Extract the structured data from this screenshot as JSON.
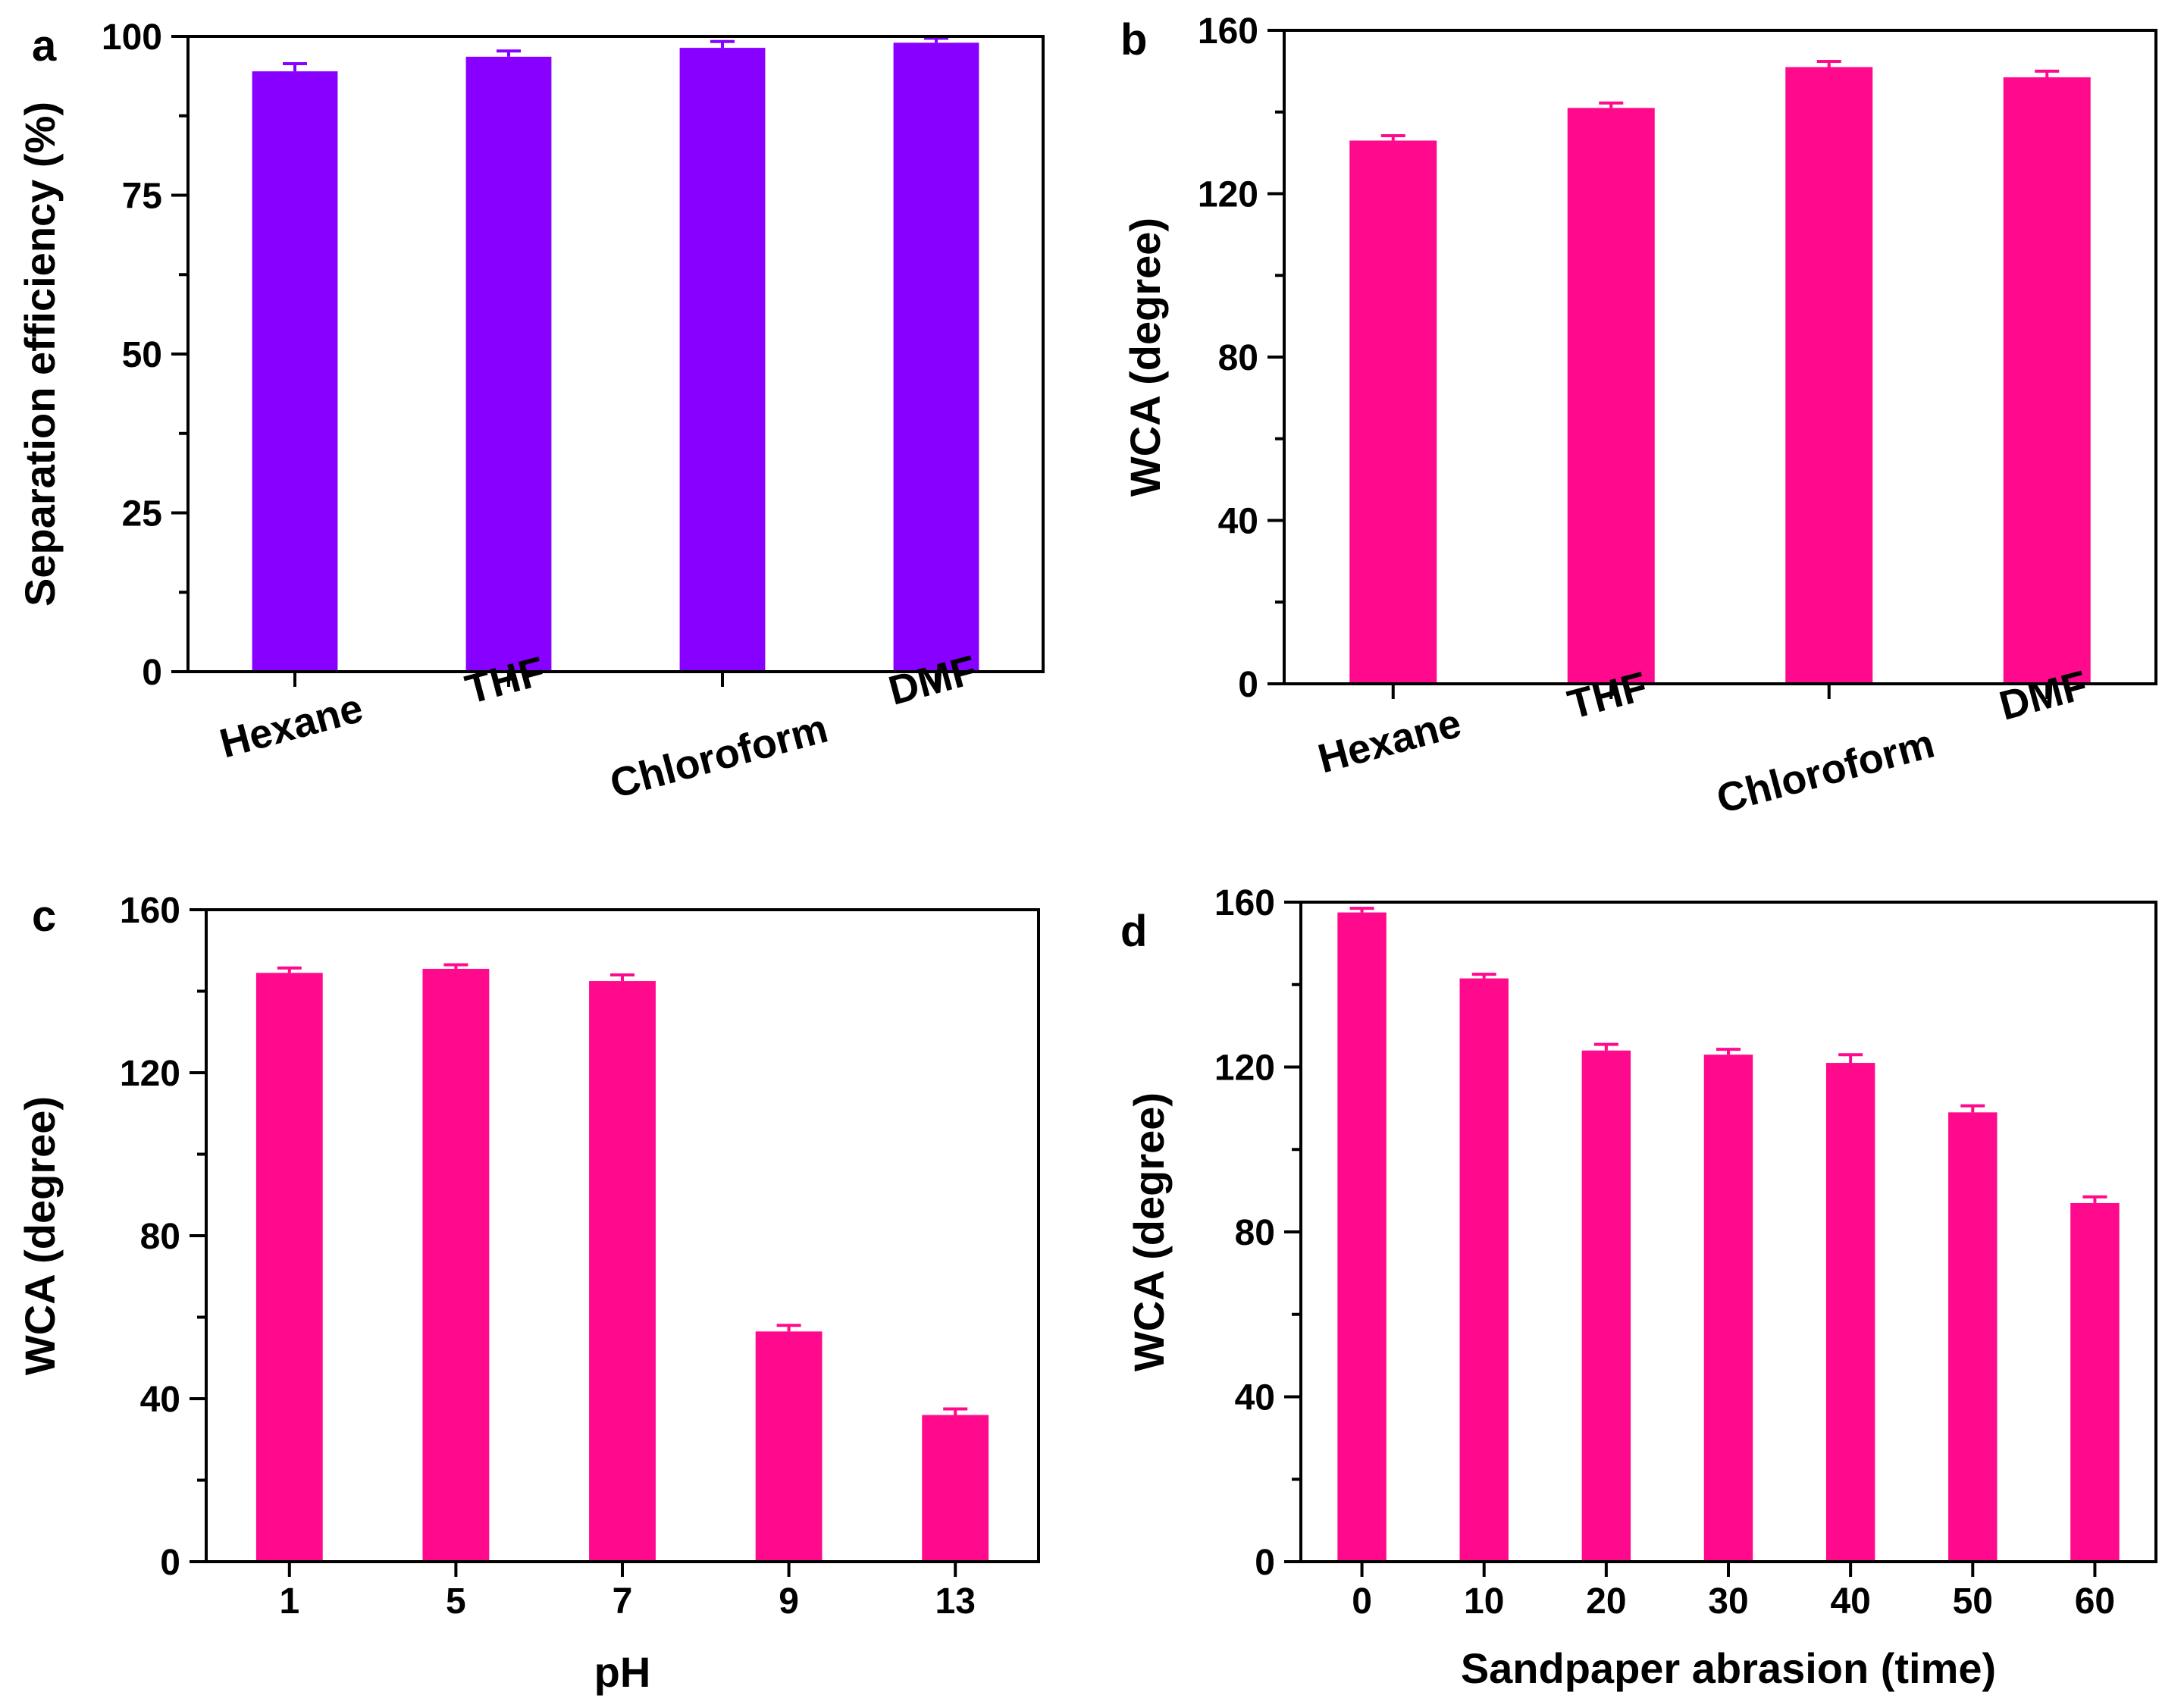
{
  "colors": {
    "purple": "#8800FF",
    "pink": "#FF0A8C"
  },
  "chart_data": [
    {
      "panel": "a",
      "type": "bar",
      "categories": [
        "Hexane",
        "THF",
        "Chloroform",
        "DMF"
      ],
      "values": [
        94.5,
        96.8,
        98.2,
        99.0
      ],
      "errors": [
        1.2,
        0.9,
        1.0,
        0.7
      ],
      "xlabel": "",
      "ylabel": "Separation efficiency (%)",
      "ylim": [
        0,
        100
      ],
      "yticks": [
        0,
        25,
        50,
        75,
        100
      ],
      "rotate_labels": true,
      "color": "#8800FF"
    },
    {
      "panel": "b",
      "type": "bar",
      "categories": [
        "Hexane",
        "THF",
        "Chloroform",
        "DMF"
      ],
      "values": [
        133,
        141,
        151,
        148.5
      ],
      "errors": [
        1.2,
        1.2,
        1.4,
        1.5
      ],
      "xlabel": "",
      "ylabel": "WCA (degree)",
      "ylim": [
        0,
        160
      ],
      "yticks": [
        0,
        40,
        80,
        120,
        160
      ],
      "rotate_labels": true,
      "color": "#FF0A8C"
    },
    {
      "panel": "c",
      "type": "bar",
      "categories": [
        "1",
        "5",
        "7",
        "9",
        "13"
      ],
      "values": [
        144.5,
        145.5,
        142.5,
        56.5,
        36
      ],
      "errors": [
        1.2,
        1.0,
        1.5,
        1.5,
        1.5
      ],
      "xlabel": "pH",
      "ylabel": "WCA (degree)",
      "ylim": [
        0,
        160
      ],
      "yticks": [
        0,
        40,
        80,
        120,
        160
      ],
      "rotate_labels": false,
      "color": "#FF0A8C"
    },
    {
      "panel": "d",
      "type": "bar",
      "categories": [
        "0",
        "10",
        "20",
        "30",
        "40",
        "50",
        "60"
      ],
      "values": [
        157.5,
        141.5,
        124,
        123,
        121,
        109,
        87
      ],
      "errors": [
        1.0,
        1.0,
        1.5,
        1.3,
        2.0,
        1.6,
        1.5
      ],
      "xlabel": "Sandpaper abrasion (time)",
      "ylabel": "WCA (degree)",
      "ylim": [
        0,
        160
      ],
      "yticks": [
        0,
        40,
        80,
        120,
        160
      ],
      "rotate_labels": false,
      "color": "#FF0A8C"
    }
  ]
}
